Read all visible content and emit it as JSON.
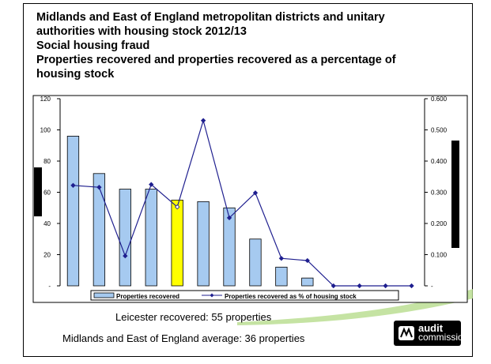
{
  "title_lines": [
    "Midlands and East of England metropolitan districts and unitary",
    "authorities with housing stock 2012/13",
    "Social housing fraud",
    "Properties recovered and properties recovered as a percentage of",
    "housing stock"
  ],
  "notes": {
    "leicester": "Leicester recovered: 55 properties",
    "average": "Midlands and East of England average: 36 properties"
  },
  "logo": {
    "line1": "audit",
    "line2": "commission"
  },
  "colors": {
    "bar": "#a6caf0",
    "bar_highlight": "#ffff00",
    "line": "#1f1f8f",
    "background_swoosh": "#b6dc8c"
  },
  "chart_data": {
    "type": "bar",
    "categories": [
      "",
      "",
      "",
      "",
      "",
      "",
      "",
      "",
      "",
      "",
      "",
      "",
      "",
      ""
    ],
    "highlight_index": 4,
    "series": [
      {
        "name": "Properties recovered",
        "type": "bar",
        "values": [
          96,
          72,
          62,
          62,
          55,
          54,
          50,
          30,
          12,
          5,
          0,
          0,
          0,
          0
        ]
      },
      {
        "name": "Properties recovered as % of housing stock",
        "type": "line",
        "values": [
          0.322,
          0.316,
          0.096,
          0.325,
          0.253,
          0.53,
          0.218,
          0.298,
          0.088,
          0.081,
          0,
          0,
          0,
          0
        ]
      }
    ],
    "ylim_left": [
      0,
      120
    ],
    "yticks_left": [
      "-",
      "20",
      "40",
      "60",
      "80",
      "100",
      "120"
    ],
    "ylim_right": [
      0,
      0.6
    ],
    "yticks_right": [
      "-",
      "0.100",
      "0.200",
      "0.300",
      "0.400",
      "0.500",
      "0.600"
    ],
    "legend_position": "bottom"
  }
}
